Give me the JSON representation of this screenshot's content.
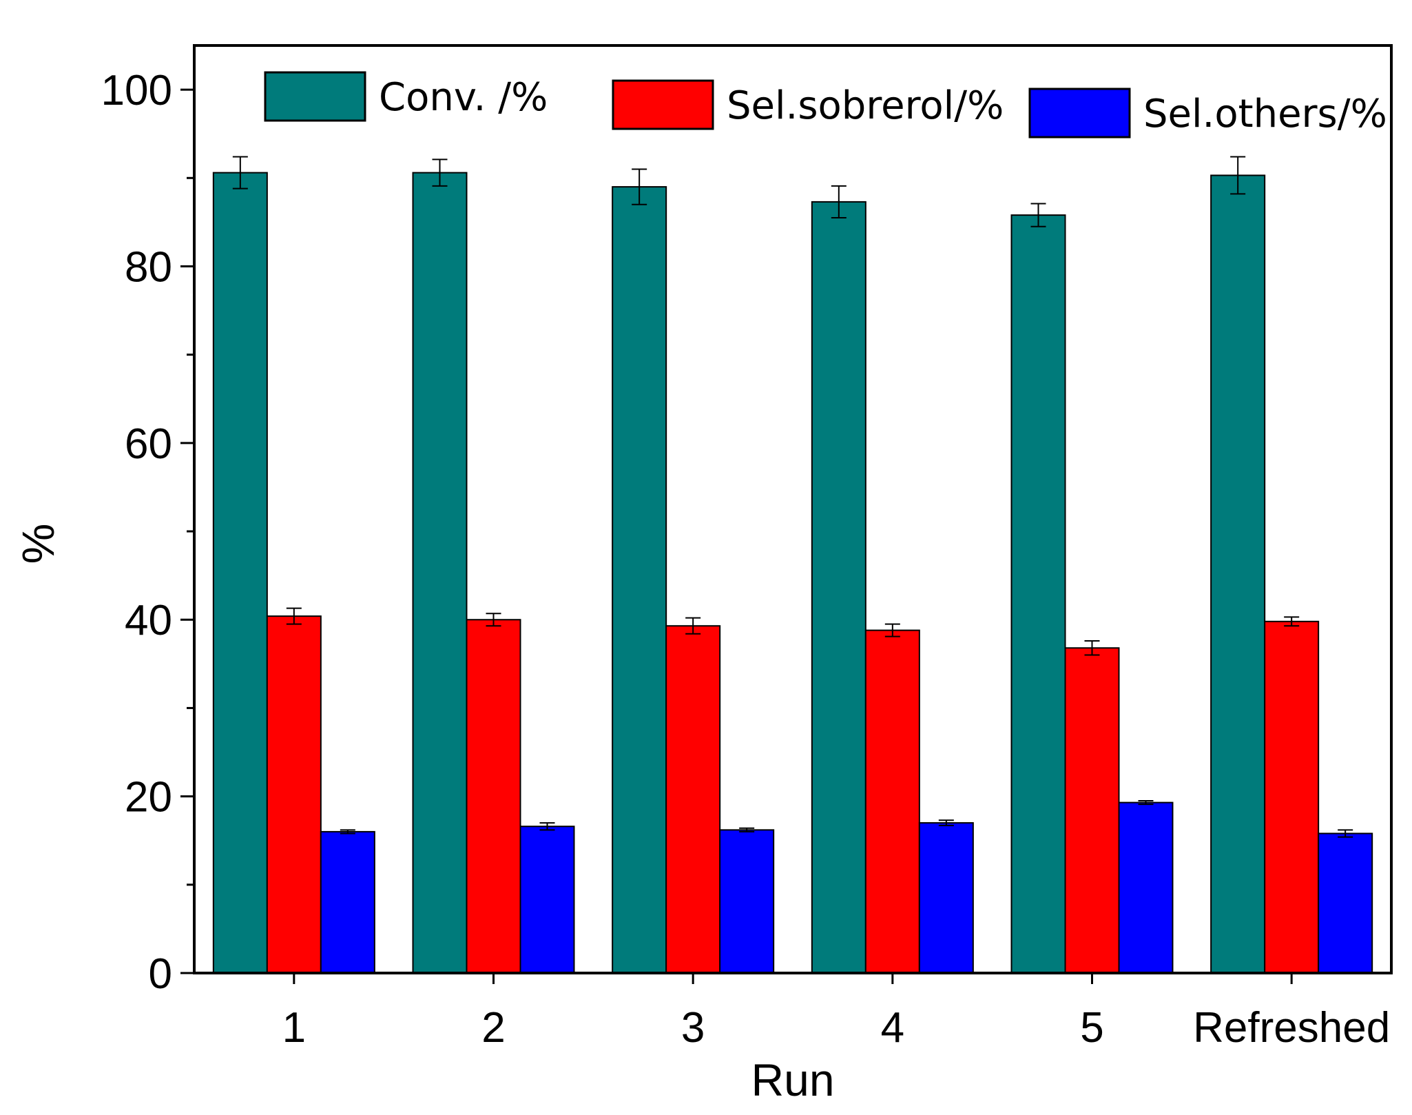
{
  "chart_data": {
    "type": "bar",
    "title": "",
    "xlabel": "Run",
    "ylabel": "%",
    "ylim": [
      0,
      105
    ],
    "yticks": [
      0,
      20,
      40,
      60,
      80,
      100
    ],
    "yminor_step": 10,
    "categories": [
      "1",
      "2",
      "3",
      "4",
      "5",
      "Refreshed"
    ],
    "legend_position": "top",
    "series": [
      {
        "name": "Conv. /%",
        "color": "#007b7b",
        "values": [
          90.6,
          90.6,
          89.0,
          87.3,
          85.8,
          90.3
        ],
        "errors": [
          1.8,
          1.5,
          2.0,
          1.8,
          1.3,
          2.1
        ]
      },
      {
        "name": "Sel.sobrerol/%",
        "color": "#ff0000",
        "values": [
          40.4,
          40.0,
          39.3,
          38.8,
          36.8,
          39.8
        ],
        "errors": [
          0.9,
          0.7,
          0.9,
          0.7,
          0.8,
          0.5
        ]
      },
      {
        "name": "Sel.others/%",
        "color": "#0000ff",
        "values": [
          16.0,
          16.6,
          16.2,
          17.0,
          19.3,
          15.8
        ],
        "errors": [
          0.2,
          0.4,
          0.2,
          0.3,
          0.2,
          0.4
        ]
      }
    ]
  }
}
